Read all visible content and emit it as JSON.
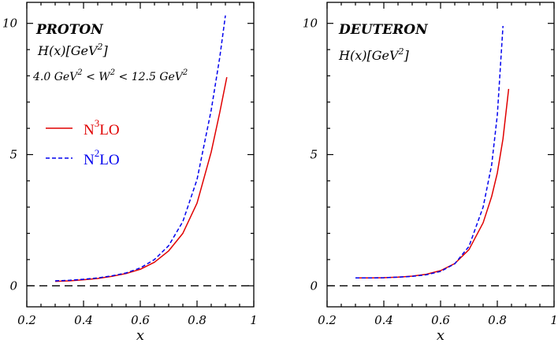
{
  "chart_data": [
    {
      "type": "line",
      "panel": "left",
      "xlim": [
        0.2,
        1.0
      ],
      "ylim": [
        -0.8,
        10.8
      ],
      "xticks": [
        "0.2",
        "0.4",
        "0.6",
        "0.8",
        "1"
      ],
      "yticks": [
        "0",
        "5",
        "10"
      ],
      "xlabel": "x",
      "title": "PROTON",
      "annotation": {
        "ylabel_main": "H(x)[GeV",
        "ylabel_exp": "2",
        "ylabel_end": "]",
        "range_a": "4.0 GeV",
        "range_b": "2",
        "range_c": " < W",
        "range_d": "2",
        "range_e": " < 12.5 GeV",
        "range_f": "2"
      },
      "legend": [
        {
          "base": "N",
          "sup": "3",
          "tail": "LO",
          "color": "#e00000",
          "style": "solid"
        },
        {
          "base": "N",
          "sup": "2",
          "tail": "LO",
          "color": "#0000ee",
          "style": "dashed"
        }
      ],
      "series": [
        {
          "name": "N3LO",
          "color": "#e00000",
          "style": "solid",
          "x": [
            0.3,
            0.35,
            0.4,
            0.45,
            0.5,
            0.55,
            0.6,
            0.65,
            0.7,
            0.75,
            0.8,
            0.85,
            0.88,
            0.905
          ],
          "y": [
            0.17,
            0.19,
            0.23,
            0.28,
            0.36,
            0.47,
            0.63,
            0.9,
            1.33,
            2.0,
            3.15,
            5.1,
            6.6,
            7.95
          ]
        },
        {
          "name": "N2LO",
          "color": "#0000ee",
          "style": "dashed",
          "x": [
            0.3,
            0.35,
            0.4,
            0.45,
            0.5,
            0.55,
            0.6,
            0.65,
            0.7,
            0.75,
            0.8,
            0.85,
            0.88,
            0.9
          ],
          "y": [
            0.19,
            0.21,
            0.25,
            0.3,
            0.38,
            0.49,
            0.68,
            1.0,
            1.53,
            2.45,
            4.05,
            6.7,
            8.7,
            10.3
          ]
        }
      ]
    },
    {
      "type": "line",
      "panel": "right",
      "xlim": [
        0.2,
        1.0
      ],
      "ylim": [
        -0.8,
        10.8
      ],
      "xticks": [
        "0.2",
        "0.4",
        "0.6",
        "0.8",
        "1"
      ],
      "yticks": [
        "0",
        "5",
        "10"
      ],
      "xlabel": "x",
      "title": "DEUTERON",
      "annotation": {
        "ylabel_main": "H(x)[GeV",
        "ylabel_exp": "2",
        "ylabel_end": "]"
      },
      "series": [
        {
          "name": "N3LO",
          "color": "#e00000",
          "style": "solid",
          "x": [
            0.3,
            0.35,
            0.4,
            0.45,
            0.5,
            0.55,
            0.6,
            0.65,
            0.7,
            0.75,
            0.78,
            0.8,
            0.82,
            0.84
          ],
          "y": [
            0.3,
            0.3,
            0.31,
            0.33,
            0.37,
            0.44,
            0.58,
            0.85,
            1.38,
            2.4,
            3.4,
            4.3,
            5.6,
            7.5
          ]
        },
        {
          "name": "N2LO",
          "color": "#0000ee",
          "style": "dashed",
          "x": [
            0.3,
            0.35,
            0.4,
            0.45,
            0.5,
            0.55,
            0.6,
            0.65,
            0.7,
            0.75,
            0.78,
            0.8,
            0.82
          ],
          "y": [
            0.3,
            0.3,
            0.31,
            0.33,
            0.36,
            0.42,
            0.55,
            0.84,
            1.5,
            3.0,
            4.6,
            6.5,
            9.9
          ]
        }
      ]
    }
  ]
}
